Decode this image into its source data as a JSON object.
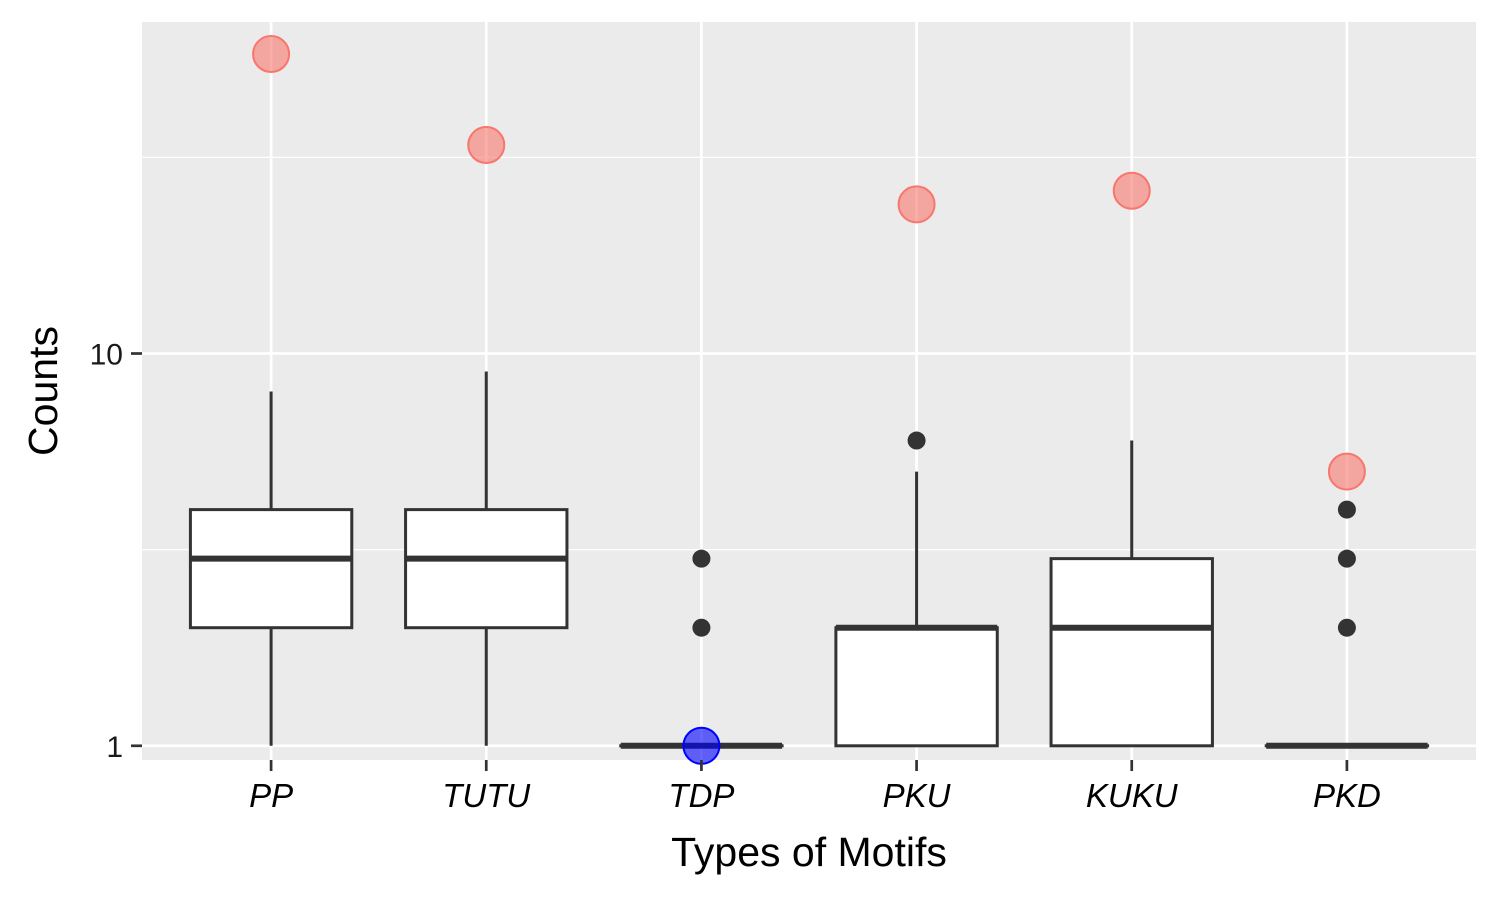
{
  "chart_data": {
    "type": "boxplot",
    "xlabel": "Types of Motifs",
    "ylabel": "Counts",
    "y_scale": "log10",
    "ylim": [
      0.92,
      70
    ],
    "y_ticks": [
      {
        "value": 1,
        "label": "1"
      },
      {
        "value": 10,
        "label": "10"
      }
    ],
    "y_minor_gridlines": [
      0.3162,
      3.162,
      31.62
    ],
    "grid": true,
    "categories": [
      "PP",
      "TUTU",
      "TDP",
      "PKU",
      "KUKU",
      "PKD"
    ],
    "boxes": [
      {
        "category": "PP",
        "whisker_low": 1,
        "q1": 2,
        "median": 3,
        "q3": 4,
        "whisker_high": 8,
        "outliers": []
      },
      {
        "category": "TUTU",
        "whisker_low": 1,
        "q1": 2,
        "median": 3,
        "q3": 4,
        "whisker_high": 9,
        "outliers": []
      },
      {
        "category": "TDP",
        "whisker_low": 1,
        "q1": 1,
        "median": 1,
        "q3": 1,
        "whisker_high": 1,
        "outliers": [
          2,
          3
        ]
      },
      {
        "category": "PKU",
        "whisker_low": 1,
        "q1": 1,
        "median": 2,
        "q3": 2,
        "whisker_high": 5,
        "outliers": [
          6
        ]
      },
      {
        "category": "KUKU",
        "whisker_low": 1,
        "q1": 1,
        "median": 2,
        "q3": 3,
        "whisker_high": 6,
        "outliers": []
      },
      {
        "category": "PKD",
        "whisker_low": 1,
        "q1": 1,
        "median": 1,
        "q3": 1,
        "whisker_high": 1,
        "outliers": [
          2,
          3,
          4
        ]
      }
    ],
    "highlight_points": [
      {
        "category": "PP",
        "value": 58,
        "color": "#F8766D"
      },
      {
        "category": "TUTU",
        "value": 34,
        "color": "#F8766D"
      },
      {
        "category": "TDP",
        "value": 1,
        "color": "#0000FF"
      },
      {
        "category": "PKU",
        "value": 24,
        "color": "#F8766D"
      },
      {
        "category": "KUKU",
        "value": 26,
        "color": "#F8766D"
      },
      {
        "category": "PKD",
        "value": 5,
        "color": "#F8766D"
      }
    ],
    "colors": {
      "panel": "#EBEBEB",
      "grid": "#FFFFFF",
      "box_fill": "#FFFFFF",
      "box_stroke": "#333333",
      "outlier": "#333333"
    }
  }
}
